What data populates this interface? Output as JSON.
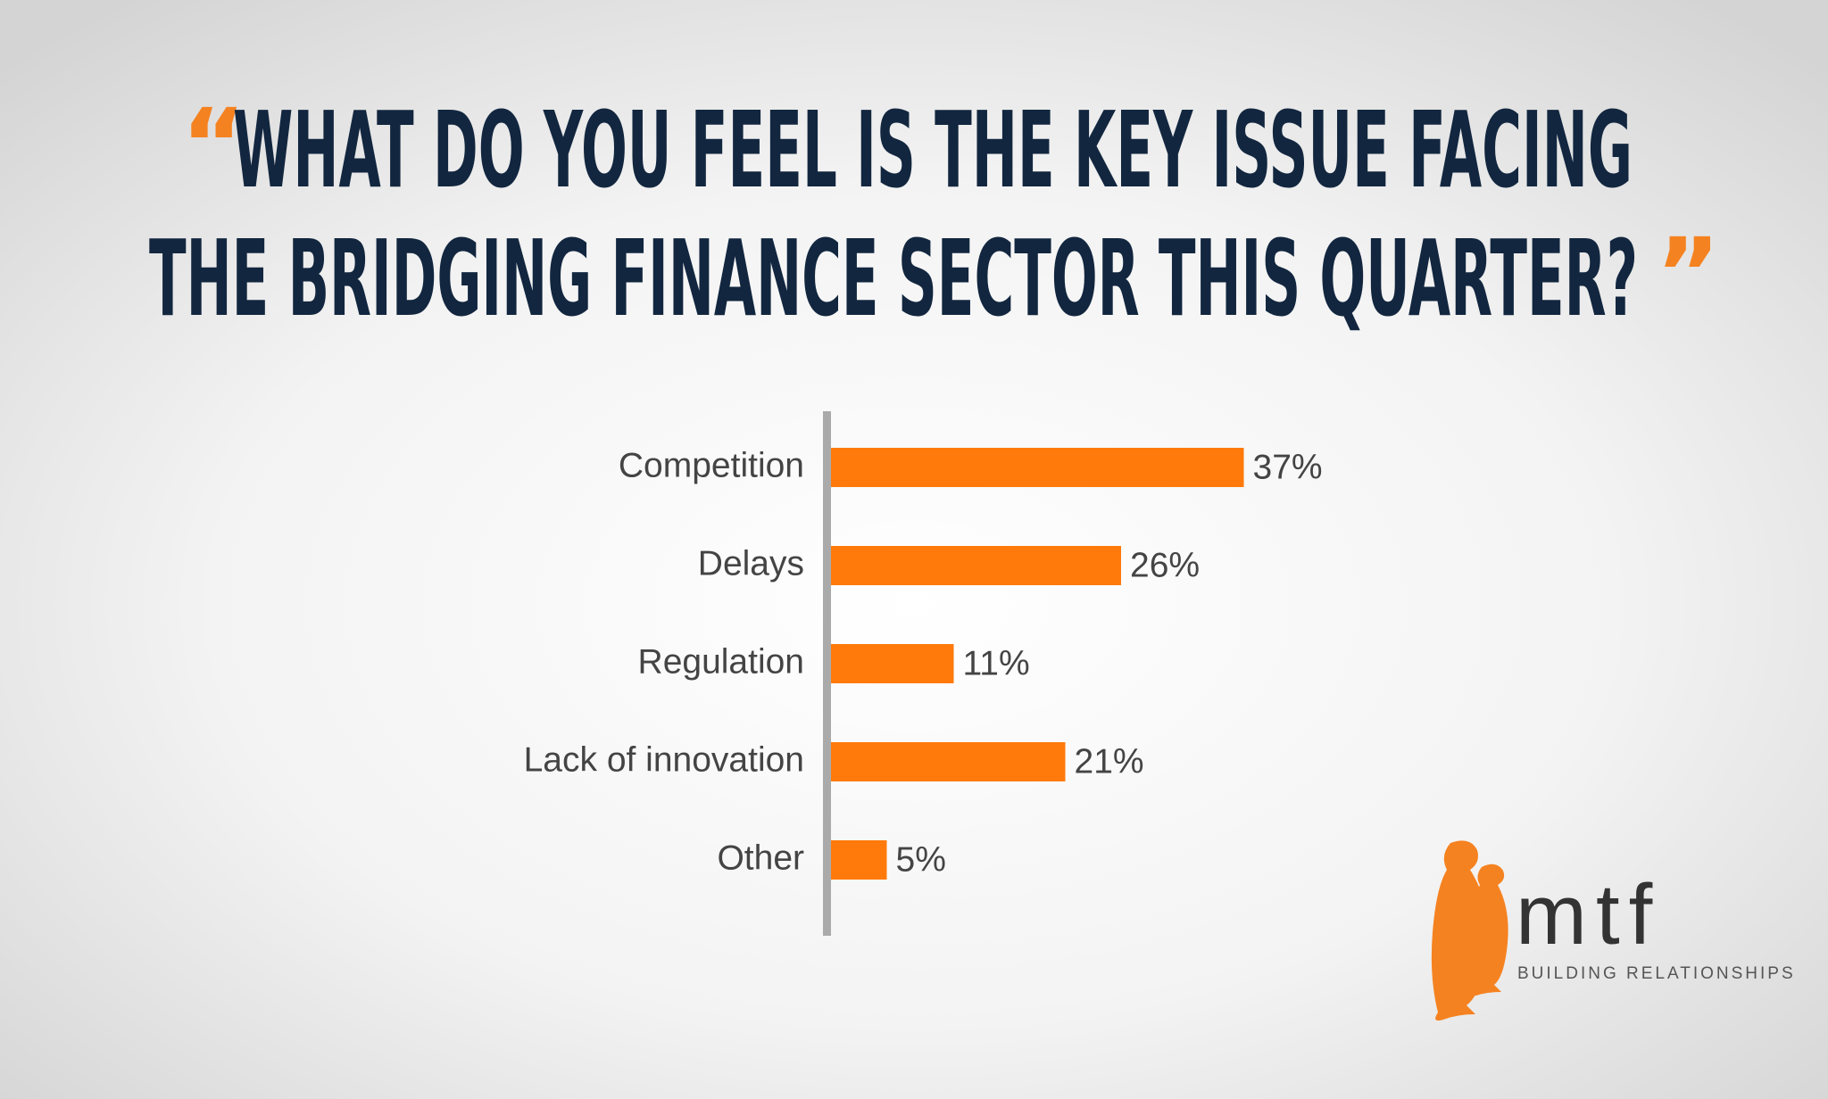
{
  "chart_data": {
    "type": "bar",
    "title": [
      "WHAT DO YOU FEEL IS THE KEY ISSUE FACING",
      "THE BRIDGING FINANCE SECTOR THIS QUARTER?"
    ],
    "title_quotes": [
      "“",
      "”"
    ],
    "categories": [
      "Competition",
      "Delays",
      "Regulation",
      "Lack of innovation",
      "Other"
    ],
    "values": [
      37,
      26,
      11,
      21,
      5
    ],
    "value_labels": [
      "37%",
      "26%",
      "11%",
      "21%",
      "5%"
    ],
    "color": "#ff7a0a",
    "orientation": "horizontal"
  },
  "logo": {
    "name": "mtf",
    "tagline": "BUILDING RELATIONSHIPS"
  }
}
